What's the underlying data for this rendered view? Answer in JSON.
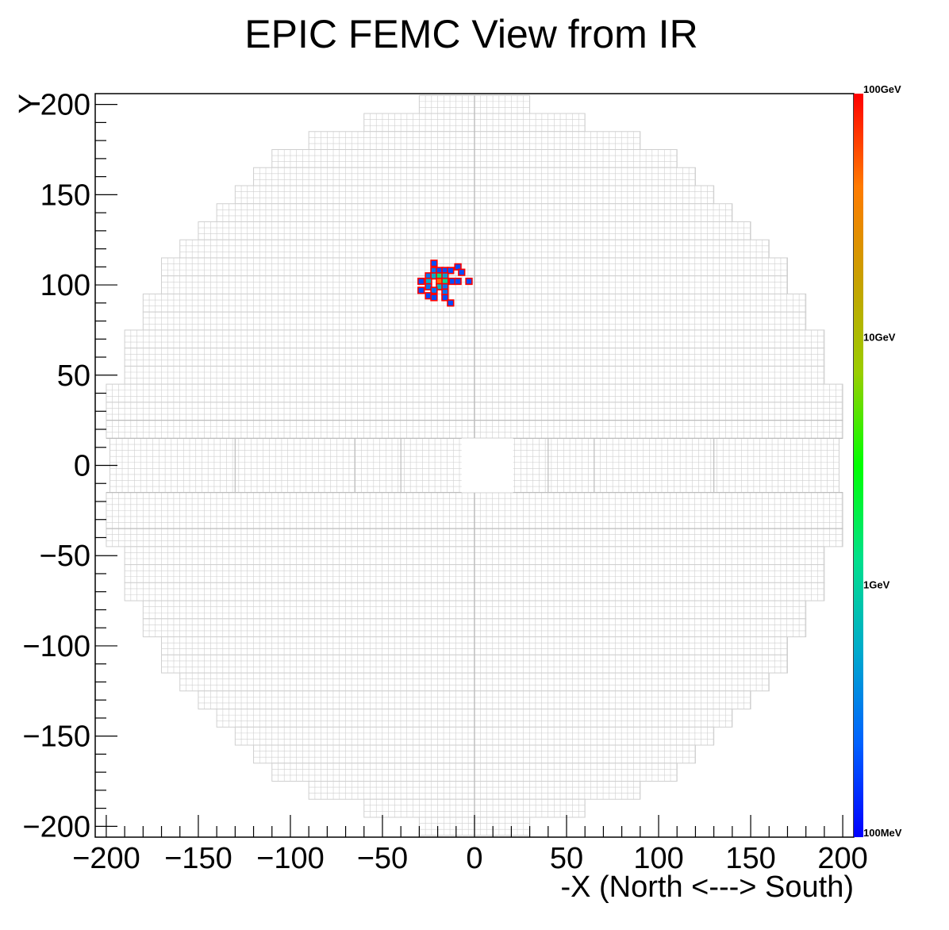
{
  "chart_data": {
    "type": "heatmap",
    "title": "EPIC FEMC View from IR",
    "xlabel": "-X (North <---> South)",
    "ylabel": "Y",
    "xlim": [
      -206,
      206
    ],
    "ylim": [
      -206,
      206
    ],
    "x_ticks": [
      -200,
      -150,
      -100,
      -50,
      0,
      50,
      100,
      150,
      200
    ],
    "y_ticks": [
      -200,
      -150,
      -100,
      -50,
      0,
      50,
      100,
      150,
      200
    ],
    "x_tick_labels": [
      "−200",
      "−150",
      "−100",
      "−50",
      "0",
      "50",
      "100",
      "150",
      "200"
    ],
    "y_tick_labels": [
      "−200",
      "−150",
      "−100",
      "−50",
      "0",
      "50",
      "100",
      "150",
      "200"
    ],
    "z_scale": "log",
    "z_ticks": [
      "100GeV",
      "10GeV",
      "1GeV",
      "100MeV"
    ],
    "z_range": [
      0.1,
      100
    ],
    "colorbar_colors": [
      "#ff0000",
      "#ff7a00",
      "#c8a000",
      "#9acd00",
      "#00ff00",
      "#00e08a",
      "#00aacc",
      "#0060ff",
      "#0000ff"
    ],
    "grid_color": "#cfcfcf",
    "hit_border_color": "#ff0000",
    "cell_size": 3.33,
    "detector_rows": [
      {
        "y": [
          195,
          205
        ],
        "x": [
          -30,
          30
        ]
      },
      {
        "y": [
          185,
          195
        ],
        "x": [
          -60,
          60
        ]
      },
      {
        "y": [
          175,
          185
        ],
        "x": [
          -90,
          90
        ]
      },
      {
        "y": [
          165,
          175
        ],
        "x": [
          -110,
          110
        ]
      },
      {
        "y": [
          155,
          165
        ],
        "x": [
          -120,
          120
        ]
      },
      {
        "y": [
          145,
          155
        ],
        "x": [
          -130,
          130
        ]
      },
      {
        "y": [
          135,
          145
        ],
        "x": [
          -140,
          140
        ]
      },
      {
        "y": [
          125,
          135
        ],
        "x": [
          -150,
          150
        ]
      },
      {
        "y": [
          115,
          125
        ],
        "x": [
          -160,
          160
        ]
      },
      {
        "y": [
          105,
          115
        ],
        "x": [
          -170,
          170
        ]
      },
      {
        "y": [
          95,
          105
        ],
        "x": [
          -170,
          170
        ]
      },
      {
        "y": [
          85,
          95
        ],
        "x": [
          -180,
          180
        ]
      },
      {
        "y": [
          75,
          85
        ],
        "x": [
          -180,
          180
        ]
      },
      {
        "y": [
          65,
          75
        ],
        "x": [
          -190,
          190
        ]
      },
      {
        "y": [
          55,
          65
        ],
        "x": [
          -190,
          190
        ]
      },
      {
        "y": [
          45,
          55
        ],
        "x": [
          -190,
          190
        ]
      },
      {
        "y": [
          35,
          45
        ],
        "x": [
          -200,
          200
        ]
      },
      {
        "y": [
          15,
          35
        ],
        "x": [
          -200,
          200
        ]
      },
      {
        "y": [
          -15,
          15
        ],
        "x": [
          -198,
          198
        ]
      },
      {
        "y": [
          -35,
          -15
        ],
        "x": [
          -200,
          200
        ]
      },
      {
        "y": [
          -45,
          -35
        ],
        "x": [
          -200,
          200
        ]
      },
      {
        "y": [
          -55,
          -45
        ],
        "x": [
          -190,
          190
        ]
      },
      {
        "y": [
          -65,
          -55
        ],
        "x": [
          -190,
          190
        ]
      },
      {
        "y": [
          -75,
          -65
        ],
        "x": [
          -190,
          190
        ]
      },
      {
        "y": [
          -85,
          -75
        ],
        "x": [
          -180,
          180
        ]
      },
      {
        "y": [
          -95,
          -85
        ],
        "x": [
          -180,
          180
        ]
      },
      {
        "y": [
          -105,
          -95
        ],
        "x": [
          -170,
          170
        ]
      },
      {
        "y": [
          -115,
          -105
        ],
        "x": [
          -170,
          170
        ]
      },
      {
        "y": [
          -125,
          -115
        ],
        "x": [
          -160,
          160
        ]
      },
      {
        "y": [
          -135,
          -125
        ],
        "x": [
          -150,
          150
        ]
      },
      {
        "y": [
          -145,
          -135
        ],
        "x": [
          -140,
          140
        ]
      },
      {
        "y": [
          -155,
          -145
        ],
        "x": [
          -130,
          130
        ]
      },
      {
        "y": [
          -165,
          -155
        ],
        "x": [
          -120,
          120
        ]
      },
      {
        "y": [
          -175,
          -165
        ],
        "x": [
          -110,
          110
        ]
      },
      {
        "y": [
          -185,
          -175
        ],
        "x": [
          -90,
          90
        ]
      },
      {
        "y": [
          -195,
          -185
        ],
        "x": [
          -60,
          60
        ]
      },
      {
        "y": [
          -205,
          -195
        ],
        "x": [
          -30,
          30
        ]
      }
    ],
    "beam_hole": {
      "x": [
        -7,
        21
      ],
      "y": [
        -15,
        15
      ]
    },
    "hits": [
      {
        "x": -22,
        "y": 112,
        "e": 0.2
      },
      {
        "x": -22,
        "y": 108,
        "e": 0.3
      },
      {
        "x": -19,
        "y": 108,
        "e": 0.2
      },
      {
        "x": -16,
        "y": 108,
        "e": 0.2
      },
      {
        "x": -13,
        "y": 108,
        "e": 0.2
      },
      {
        "x": -9,
        "y": 110,
        "e": 0.2
      },
      {
        "x": -7,
        "y": 107,
        "e": 0.2
      },
      {
        "x": -25,
        "y": 105,
        "e": 0.3
      },
      {
        "x": -22,
        "y": 105,
        "e": 0.6
      },
      {
        "x": -19,
        "y": 105,
        "e": 1.5
      },
      {
        "x": -16,
        "y": 105,
        "e": 0.5
      },
      {
        "x": -29,
        "y": 102,
        "e": 0.2
      },
      {
        "x": -25,
        "y": 102,
        "e": 0.6
      },
      {
        "x": -19,
        "y": 102,
        "e": 45
      },
      {
        "x": -16,
        "y": 102,
        "e": 1.2
      },
      {
        "x": -12,
        "y": 102,
        "e": 0.2
      },
      {
        "x": -9,
        "y": 102,
        "e": 0.2
      },
      {
        "x": -3,
        "y": 102,
        "e": 0.2
      },
      {
        "x": -25,
        "y": 99,
        "e": 0.3
      },
      {
        "x": -19,
        "y": 99,
        "e": 0.7
      },
      {
        "x": -16,
        "y": 99,
        "e": 0.3
      },
      {
        "x": -29,
        "y": 97,
        "e": 0.2
      },
      {
        "x": -22,
        "y": 97,
        "e": 0.3
      },
      {
        "x": -16,
        "y": 96,
        "e": 0.3
      },
      {
        "x": -25,
        "y": 94,
        "e": 0.2
      },
      {
        "x": -22,
        "y": 93,
        "e": 0.2
      },
      {
        "x": -16,
        "y": 93,
        "e": 0.2
      },
      {
        "x": -13,
        "y": 90,
        "e": 0.2
      }
    ]
  }
}
